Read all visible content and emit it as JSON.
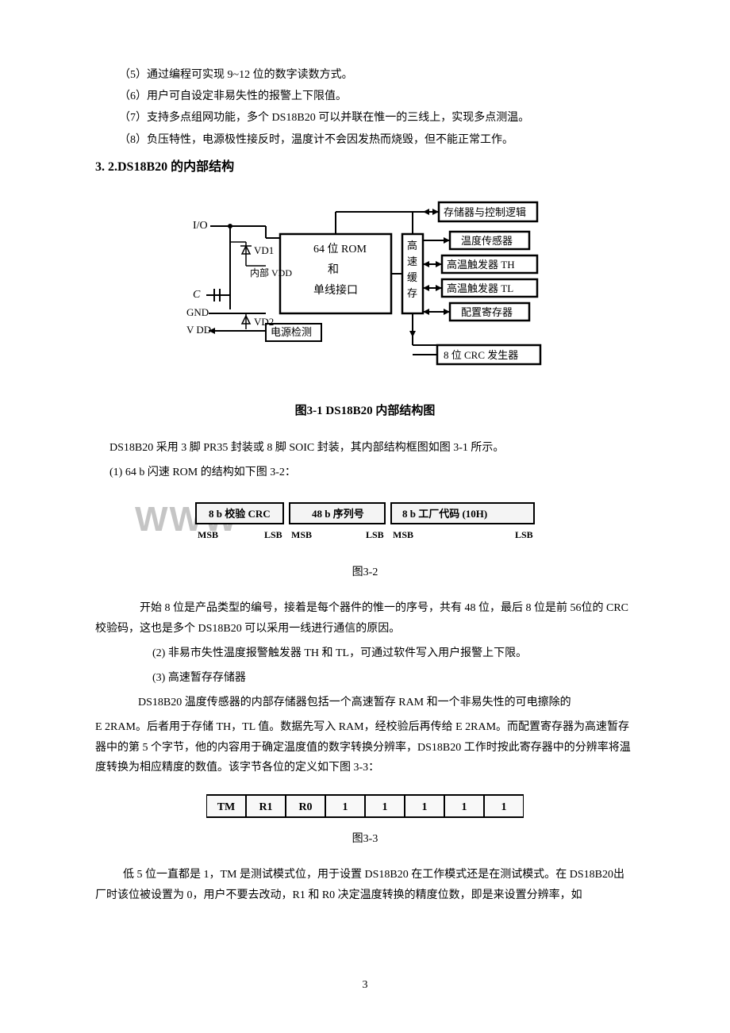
{
  "features": {
    "f5": "（5）通过编程可实现 9~12 位的数字读数方式。",
    "f6": "（6）用户可自设定非易失性的报警上下限值。",
    "f7": "（7）支持多点组网功能，多个 DS18B20 可以并联在惟一的三线上，实现多点测温。",
    "f8": "（8）负压特性，电源极性接反时，温度计不会因发热而烧毁，但不能正常工作。"
  },
  "heading32": "3. 2.DS18B20 的内部结构",
  "diagram31": {
    "caption": "图3-1  DS18B20 内部结构图",
    "labels": {
      "io": "I/O",
      "c": "C",
      "gnd": "GND",
      "vdd_pin": "V DD",
      "vd1": "VD1",
      "internal_vdd": "内部 VDD",
      "vd2": "VD2",
      "power_detect": "电源检测",
      "rom_block_l1": "64 位 ROM",
      "rom_block_l2": "和",
      "rom_block_l3": "单线接口",
      "cache_col": "高\n速\n缓\n存",
      "mem_logic": "存储器与控制逻辑",
      "temp_sensor": "温度传感器",
      "th_trigger": "高温触发器 TH",
      "tl_trigger": "高温触发器 TL",
      "config_reg": "配置寄存器",
      "crc_gen": "8 位 CRC 发生器"
    }
  },
  "para_after31_a": "DS18B20 采用 3 脚 PR35 封装或 8 脚 SOIC 封装，其内部结构框图如图 3-1 所示。",
  "para_after31_b": "(1) 64 b 闪速 ROM 的结构如下图 3-2：",
  "watermark": "WWW",
  "diagram32": {
    "cells": {
      "crc": "8 b 校验 CRC",
      "serial": "48 b 序列号",
      "factory": "8 b 工厂代码 (10H)"
    },
    "sub_left_l": "MSB",
    "sub_left_r": "LSB",
    "sub_mid_l": "MSB",
    "sub_mid_r": "LSB",
    "sub_right_l": "MSB",
    "sub_right_r": "LSB",
    "caption": "图3-2"
  },
  "para_crc": "开始 8 位是产品类型的编号，接着是每个器件的惟一的序号，共有 48 位，最后 8 位是前 56位的 CRC 校验码，这也是多个 DS18B20 可以采用一线进行通信的原因。",
  "item2": "(2)  非易市失性温度报警触发器 TH 和 TL，可通过软件写入用户报警上下限。",
  "item3": "(3)  高速暂存存储器",
  "para_ds18b20_mem": "DS18B20 温度传感器的内部存储器包括一个高速暂存 RAM 和一个非易失性的可电擦除的",
  "para_eram": "E  2RAM。后者用于存储 TH，TL 值。数据先写入 RAM，经校验后再传给 E  2RAM。而配置寄存器为高速暂存器中的第 5 个字节，他的内容用于确定温度值的数字转换分辨率，DS18B20 工作时按此寄存器中的分辨率将温度转换为相应精度的数值。该字节各位的定义如下图 3-3：",
  "diagram33": {
    "cells": [
      "TM",
      "R1",
      "R0",
      "1",
      "1",
      "1",
      "1",
      "1"
    ],
    "caption": "图3-3"
  },
  "para_last": "低 5 位一直都是 1，TM 是测试模式位，用于设置 DS18B20 在工作模式还是在测试模式。在 DS18B20出厂时该位被设置为 0，用户不要去改动，R1 和 R0 决定温度转换的精度位数，即是来设置分辨率，如",
  "page_number": "3",
  "colors": {
    "text": "#000000",
    "bg": "#ffffff",
    "line": "#000000",
    "watermark": "#a0a0a0",
    "cell_fill": "#f4f4f4"
  }
}
